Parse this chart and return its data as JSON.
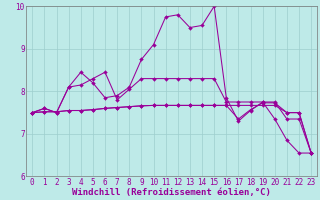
{
  "xlabel": "Windchill (Refroidissement éolien,°C)",
  "bg_color": "#beeae8",
  "grid_color": "#9ecece",
  "line_color": "#990099",
  "xlim": [
    -0.5,
    23.5
  ],
  "ylim": [
    6,
    10
  ],
  "yticks": [
    6,
    7,
    8,
    9,
    10
  ],
  "xticks": [
    0,
    1,
    2,
    3,
    4,
    5,
    6,
    7,
    8,
    9,
    10,
    11,
    12,
    13,
    14,
    15,
    16,
    17,
    18,
    19,
    20,
    21,
    22,
    23
  ],
  "series": [
    [
      7.5,
      7.6,
      7.5,
      8.1,
      8.45,
      8.2,
      7.85,
      7.9,
      8.1,
      8.75,
      9.1,
      9.75,
      9.8,
      9.5,
      9.55,
      10.0,
      7.85,
      7.3,
      7.55,
      7.75,
      7.35,
      6.85,
      6.55,
      6.55
    ],
    [
      7.5,
      7.6,
      7.5,
      8.1,
      8.15,
      8.3,
      8.45,
      7.8,
      8.05,
      8.3,
      8.3,
      8.3,
      8.3,
      8.3,
      8.3,
      8.3,
      7.75,
      7.75,
      7.75,
      7.75,
      7.75,
      7.35,
      7.35,
      6.55
    ],
    [
      7.5,
      7.52,
      7.52,
      7.55,
      7.55,
      7.57,
      7.6,
      7.62,
      7.64,
      7.66,
      7.67,
      7.67,
      7.67,
      7.67,
      7.67,
      7.67,
      7.67,
      7.35,
      7.57,
      7.73,
      7.73,
      7.5,
      7.5,
      6.55
    ],
    [
      7.5,
      7.52,
      7.52,
      7.55,
      7.55,
      7.57,
      7.6,
      7.62,
      7.64,
      7.66,
      7.67,
      7.67,
      7.67,
      7.67,
      7.67,
      7.67,
      7.67,
      7.67,
      7.67,
      7.67,
      7.67,
      7.5,
      7.5,
      6.55
    ]
  ],
  "marker": "D",
  "markersize": 2.0,
  "linewidth": 0.75,
  "xlabel_fontsize": 6.5,
  "tick_fontsize": 5.5
}
